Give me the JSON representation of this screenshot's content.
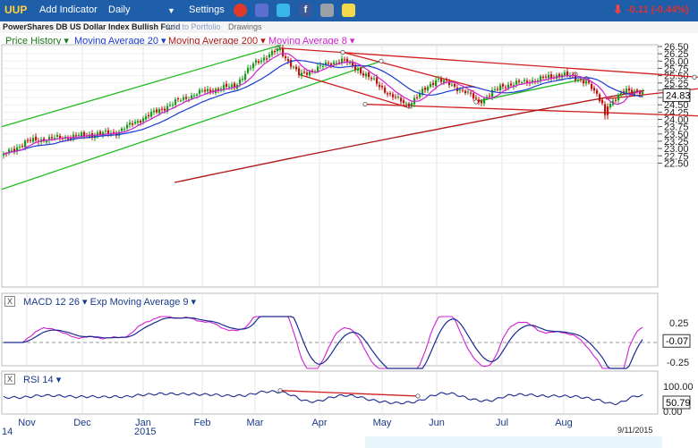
{
  "toolbar": {
    "symbol": "UUP",
    "add_indicator": "Add Indicator",
    "interval": "Daily",
    "interval_arrow": "▼",
    "settings": "Settings",
    "change": "-0.11 (-0.44%)",
    "icons": [
      "alarm-clock-icon",
      "notes-icon",
      "twitter-icon",
      "facebook-icon",
      "camera-icon",
      "sticky-note-icon"
    ]
  },
  "subbar": {
    "fund_name": "PowerShares DB US Dollar Index Bullish Fund",
    "add_to_portfolio": "Add to Portfolio",
    "drawings": "Drawings"
  },
  "legend": [
    {
      "label": "Price History",
      "color": "#1a7a1a"
    },
    {
      "label": "Moving Average 20",
      "color": "#1a3ad0"
    },
    {
      "label": "Moving Average 200",
      "color": "#b01818"
    },
    {
      "label": "Moving Average 8",
      "color": "#d020d0"
    }
  ],
  "macd_header": {
    "x_label": "X",
    "label1": "MACD 12 26",
    "label2": "Exp Moving Average 9"
  },
  "rsi_header": {
    "x_label": "X",
    "label": "RSI 14"
  },
  "price_axis": [
    "26.50",
    "26.25",
    "26.00",
    "25.75",
    "25.50",
    "25.25",
    "25.00",
    "24.75",
    "24.50",
    "24.25",
    "24.00",
    "23.75",
    "23.50",
    "23.25",
    "23.00",
    "22.75",
    "22.50"
  ],
  "last_price": "24.83",
  "macd_axis": [
    "0.25",
    "-0.25"
  ],
  "macd_last": "-0.07",
  "rsi_axis": [
    "100.00",
    "0.00"
  ],
  "rsi_last": "50.79",
  "x_axis": [
    "Nov",
    "Dec",
    "Jan",
    "Feb",
    "Mar",
    "Apr",
    "May",
    "Jun",
    "Jul",
    "Aug"
  ],
  "x_axis_years": [
    "14",
    "2015"
  ],
  "date_label": "9/11/2015",
  "colors": {
    "up": "#1a9a1a",
    "down": "#c01010",
    "ma20": "#1a3ad0",
    "ma200": "#b01818",
    "ma8": "#d020d0",
    "channel_green": "#22bb22",
    "channel_red": "#d02020"
  }
}
